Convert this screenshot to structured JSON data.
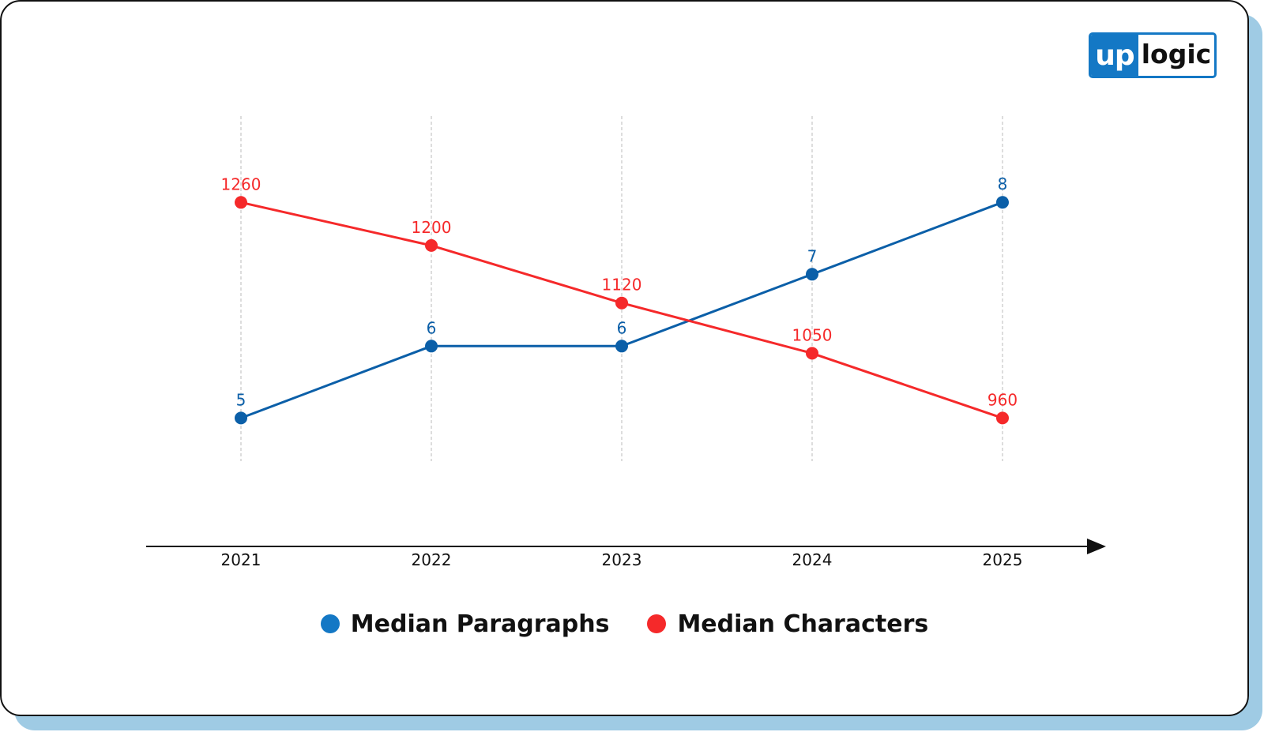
{
  "logo": {
    "part1": "up",
    "part2": "logic"
  },
  "colors": {
    "paragraphs": "#0b5fa8",
    "characters": "#f5292a",
    "shadow": "#9fcbe4",
    "brand": "#1478c5"
  },
  "chart_data": {
    "type": "line",
    "categories": [
      "2021",
      "2022",
      "2023",
      "2024",
      "2025"
    ],
    "series": [
      {
        "name": "Median Paragraphs",
        "values": [
          5,
          6,
          6,
          7,
          8
        ],
        "color": "#0b5fa8",
        "legend_color": "#1478c5"
      },
      {
        "name": "Median Characters",
        "values": [
          1260,
          1200,
          1120,
          1050,
          960
        ],
        "color": "#f5292a",
        "legend_color": "#f5292a"
      }
    ],
    "title": "",
    "xlabel": "",
    "ylabel": "",
    "dual_axis": true,
    "ylim_paragraphs": [
      4.4,
      9.2
    ],
    "ylim_characters": [
      900,
      1380
    ],
    "grid": "vertical dashed",
    "legend_position": "bottom-center"
  }
}
